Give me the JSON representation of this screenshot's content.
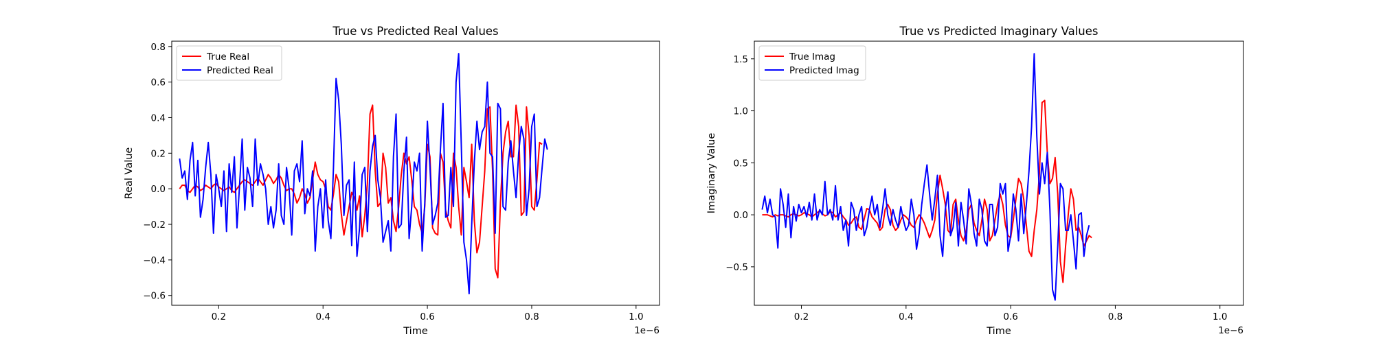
{
  "chart_data": [
    {
      "type": "line",
      "title": "True vs Predicted Real Values",
      "xlabel": "Time",
      "ylabel": "Real Value",
      "x_offset_label": "1e−6",
      "xlim": [
        0.11,
        1.045
      ],
      "ylim": [
        -0.655,
        0.83
      ],
      "xticks": [
        0.2,
        0.4,
        0.6,
        0.8,
        1.0
      ],
      "xtick_labels": [
        "0.2",
        "0.4",
        "0.6",
        "0.8",
        "1.0"
      ],
      "yticks": [
        -0.6,
        -0.4,
        -0.2,
        0.0,
        0.2,
        0.4,
        0.6,
        0.8
      ],
      "ytick_labels": [
        "−0.6",
        "−0.4",
        "−0.2",
        "0.0",
        "0.2",
        "0.4",
        "0.6",
        "0.8"
      ],
      "legend_position": "top-left",
      "grid": false,
      "x_start": 0.125,
      "x_step": 0.005,
      "series": [
        {
          "name": "True Real",
          "color": "#ff0000",
          "values": [
            0.0,
            0.02,
            0.02,
            -0.01,
            -0.02,
            0.0,
            0.02,
            0.01,
            -0.01,
            0.0,
            0.02,
            0.01,
            0.0,
            0.02,
            0.03,
            0.01,
            0.0,
            -0.01,
            0.0,
            0.01,
            -0.01,
            -0.02,
            0.0,
            0.02,
            0.04,
            0.05,
            0.04,
            0.03,
            0.02,
            0.04,
            0.06,
            0.04,
            0.02,
            0.05,
            0.08,
            0.06,
            0.03,
            0.05,
            0.08,
            0.06,
            0.02,
            -0.01,
            0.0,
            0.0,
            -0.03,
            -0.08,
            -0.05,
            0.0,
            -0.03,
            -0.08,
            -0.05,
            0.05,
            0.15,
            0.08,
            0.05,
            0.04,
            0.0,
            -0.1,
            -0.12,
            -0.03,
            0.08,
            0.04,
            -0.14,
            -0.26,
            -0.18,
            -0.1,
            -0.02,
            -0.05,
            -0.12,
            -0.04,
            -0.27,
            -0.15,
            0.03,
            0.42,
            0.47,
            0.1,
            -0.1,
            -0.08,
            0.2,
            0.12,
            -0.08,
            -0.05,
            -0.18,
            -0.24,
            -0.1,
            0.08,
            0.2,
            0.14,
            0.18,
            0.05,
            -0.1,
            -0.12,
            -0.2,
            -0.25,
            -0.1,
            0.25,
            0.18,
            -0.22,
            -0.25,
            -0.26,
            0.2,
            0.15,
            -0.12,
            -0.18,
            -0.22,
            0.2,
            0.12,
            -0.1,
            -0.26,
            0.12,
            0.04,
            -0.05,
            0.25,
            -0.18,
            -0.36,
            -0.3,
            -0.1,
            0.1,
            0.45,
            0.46,
            0.1,
            -0.45,
            -0.5,
            -0.08,
            0.2,
            0.32,
            0.38,
            0.18,
            0.18,
            0.47,
            0.35,
            -0.15,
            -0.13,
            0.46,
            0.3,
            -0.1,
            -0.12,
            0.05,
            0.26,
            0.25
          ]
        },
        {
          "name": "Predicted Real",
          "color": "#0000ff",
          "values": [
            0.17,
            0.06,
            0.1,
            -0.06,
            0.16,
            0.26,
            -0.04,
            0.16,
            -0.16,
            -0.06,
            0.12,
            0.26,
            0.08,
            -0.25,
            0.08,
            0.0,
            -0.1,
            0.1,
            -0.24,
            0.14,
            -0.02,
            0.18,
            -0.22,
            0.02,
            0.28,
            -0.12,
            0.12,
            0.06,
            -0.1,
            0.28,
            0.02,
            0.14,
            0.08,
            0.0,
            -0.2,
            -0.1,
            -0.22,
            -0.12,
            0.14,
            -0.15,
            -0.2,
            0.12,
            0.0,
            -0.26,
            0.1,
            0.14,
            0.04,
            0.27,
            -0.14,
            0.0,
            -0.04,
            0.1,
            -0.35,
            -0.1,
            0.0,
            -0.22,
            0.05,
            -0.18,
            -0.28,
            0.12,
            0.62,
            0.5,
            0.25,
            -0.15,
            0.02,
            0.05,
            -0.32,
            0.15,
            -0.38,
            -0.22,
            0.08,
            0.12,
            -0.24,
            0.1,
            0.24,
            0.3,
            0.05,
            -0.05,
            -0.3,
            -0.24,
            -0.18,
            -0.35,
            0.18,
            0.42,
            -0.22,
            -0.2,
            0.1,
            0.29,
            -0.28,
            -0.1,
            0.15,
            0.1,
            0.2,
            -0.35,
            -0.08,
            0.38,
            0.12,
            -0.2,
            -0.15,
            -0.08,
            0.22,
            0.48,
            -0.16,
            -0.15,
            0.12,
            -0.1,
            0.6,
            0.76,
            0.25,
            -0.3,
            -0.4,
            -0.59,
            -0.2,
            0.15,
            0.38,
            0.22,
            0.32,
            0.35,
            0.6,
            0.2,
            0.18,
            -0.25,
            0.48,
            0.45,
            -0.1,
            -0.12,
            0.15,
            0.27,
            0.1,
            -0.05,
            0.2,
            0.35,
            0.28,
            -0.15,
            0.0,
            0.35,
            0.42,
            -0.1,
            -0.05,
            0.12,
            0.28,
            0.22
          ]
        }
      ]
    },
    {
      "type": "line",
      "title": "True vs Predicted Imaginary Values",
      "xlabel": "Time",
      "ylabel": "Imaginary Value",
      "x_offset_label": "1e−6",
      "xlim": [
        0.11,
        1.045
      ],
      "ylim": [
        -0.87,
        1.67
      ],
      "xticks": [
        0.2,
        0.4,
        0.6,
        0.8,
        1.0
      ],
      "xtick_labels": [
        "0.2",
        "0.4",
        "0.6",
        "0.8",
        "1.0"
      ],
      "yticks": [
        -0.5,
        0.0,
        0.5,
        1.0,
        1.5
      ],
      "ytick_labels": [
        "−0.5",
        "0.0",
        "0.5",
        "1.0",
        "1.5"
      ],
      "legend_position": "top-left",
      "grid": false,
      "x_start": 0.125,
      "x_step": 0.005,
      "series": [
        {
          "name": "True Imag",
          "color": "#ff0000",
          "values": [
            0.0,
            0.0,
            0.0,
            -0.01,
            -0.02,
            0.0,
            -0.01,
            0.0,
            0.0,
            -0.01,
            -0.02,
            0.0,
            0.01,
            0.0,
            -0.01,
            0.0,
            0.02,
            0.01,
            0.0,
            -0.02,
            0.0,
            0.02,
            0.04,
            0.01,
            -0.01,
            0.0,
            0.03,
            0.02,
            -0.02,
            0.0,
            0.02,
            -0.02,
            -0.05,
            -0.1,
            -0.08,
            -0.04,
            -0.02,
            -0.12,
            -0.14,
            -0.04,
            0.06,
            0.05,
            -0.02,
            -0.05,
            -0.08,
            -0.15,
            -0.12,
            0.05,
            0.1,
            0.05,
            -0.1,
            -0.15,
            -0.12,
            -0.05,
            0.0,
            -0.02,
            -0.05,
            -0.1,
            -0.12,
            -0.05,
            0.0,
            -0.03,
            -0.08,
            -0.15,
            -0.22,
            -0.15,
            -0.05,
            0.2,
            0.38,
            0.25,
            0.1,
            -0.15,
            -0.18,
            0.1,
            0.15,
            -0.05,
            -0.2,
            -0.25,
            -0.15,
            0.05,
            0.1,
            -0.08,
            -0.15,
            -0.2,
            -0.05,
            0.15,
            0.05,
            -0.25,
            -0.2,
            -0.05,
            0.1,
            0.2,
            0.1,
            -0.1,
            -0.2,
            -0.22,
            -0.05,
            0.15,
            0.35,
            0.3,
            0.15,
            -0.1,
            -0.35,
            -0.4,
            -0.15,
            0.05,
            0.4,
            1.08,
            1.1,
            0.6,
            0.3,
            0.35,
            0.55,
            0.2,
            -0.45,
            -0.65,
            -0.3,
            0.0,
            0.25,
            0.15,
            -0.15,
            -0.12,
            -0.2,
            -0.3,
            -0.25,
            -0.2,
            -0.22
          ]
        },
        {
          "name": "Predicted Imag",
          "color": "#0000ff",
          "values": [
            0.05,
            0.18,
            0.02,
            0.15,
            0.0,
            -0.02,
            -0.32,
            0.25,
            0.1,
            -0.12,
            0.2,
            -0.22,
            0.08,
            -0.06,
            0.1,
            0.02,
            0.08,
            -0.02,
            0.12,
            -0.05,
            0.2,
            -0.05,
            0.05,
            0.0,
            0.32,
            0.0,
            0.05,
            -0.05,
            0.28,
            -0.05,
            0.08,
            -0.15,
            -0.05,
            -0.3,
            0.12,
            0.05,
            -0.15,
            0.0,
            0.08,
            -0.2,
            -0.12,
            0.05,
            0.18,
            0.0,
            0.1,
            -0.12,
            0.05,
            0.25,
            0.0,
            -0.1,
            0.05,
            -0.05,
            -0.12,
            0.08,
            -0.05,
            -0.15,
            -0.1,
            0.15,
            0.0,
            -0.33,
            -0.18,
            0.1,
            0.3,
            0.48,
            0.2,
            -0.05,
            0.15,
            0.38,
            -0.2,
            -0.4,
            0.05,
            0.22,
            -0.2,
            -0.12,
            0.12,
            -0.3,
            0.12,
            -0.05,
            -0.28,
            0.25,
            0.1,
            -0.18,
            -0.3,
            0.15,
            0.05,
            -0.25,
            -0.3,
            0.1,
            0.1,
            -0.2,
            -0.12,
            0.3,
            0.2,
            0.3,
            -0.35,
            -0.2,
            0.2,
            0.05,
            -0.25,
            0.2,
            -0.18,
            0.1,
            0.42,
            0.85,
            1.55,
            0.75,
            0.2,
            0.5,
            0.3,
            0.6,
            0.05,
            -0.72,
            -0.82,
            -0.3,
            0.3,
            0.25,
            -0.15,
            -0.15,
            0.0,
            -0.25,
            -0.52,
            0.0,
            0.02,
            -0.4,
            -0.2,
            -0.1
          ]
        }
      ]
    }
  ]
}
